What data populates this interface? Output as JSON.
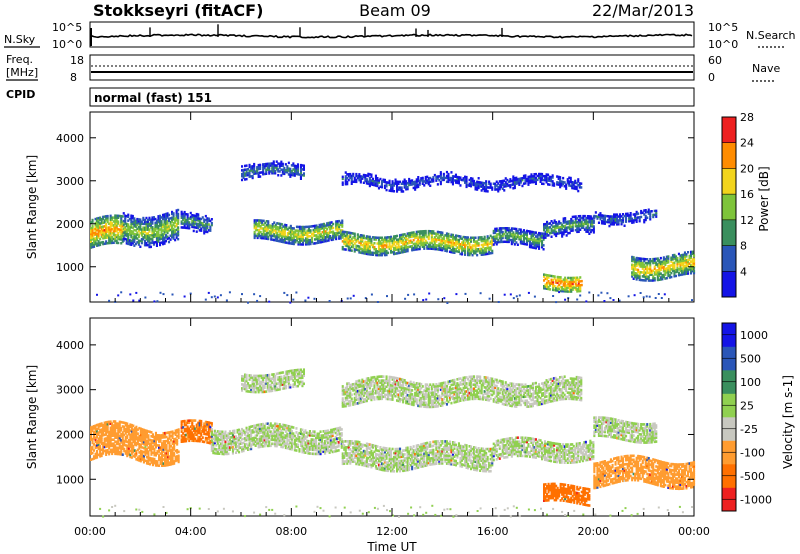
{
  "header": {
    "station": "Stokkseyri (fitACF)",
    "beam": "Beam 09",
    "date": "22/Mar/2013"
  },
  "noise_panel": {
    "left_label": "N.Sky",
    "right_label": "N.Search",
    "top_tick": "10^5",
    "bottom_tick": "10^0"
  },
  "freq_panel": {
    "left_label_1": "Freq.",
    "left_label_2": "[MHz]",
    "left_tick_top": "18",
    "left_tick_bottom": "8",
    "right_label": "Nave",
    "right_tick_top": "60",
    "right_tick_bottom": "0"
  },
  "cpid_panel": {
    "label": "CPID",
    "value": "normal (fast) 151"
  },
  "chart_data": [
    {
      "type": "heatmap",
      "name": "Power",
      "xlabel": "Time UT",
      "ylabel": "Slant Range [km]",
      "colorbar_label": "Power [dB]",
      "x_ticks": [
        "00:00",
        "04:00",
        "08:00",
        "12:00",
        "16:00",
        "20:00",
        "00:00"
      ],
      "y_ticks": [
        1000,
        2000,
        3000,
        4000
      ],
      "ylim": [
        180,
        4600
      ],
      "colorbar_ticks": [
        4,
        8,
        12,
        16,
        20,
        24,
        28
      ],
      "colors": [
        "#1414e6",
        "#2a56b8",
        "#3a8f5e",
        "#7ec43a",
        "#f2d41c",
        "#ff8c00",
        "#ee2020"
      ],
      "bands": [
        {
          "t0": 0.0,
          "t1": 1.3,
          "r": 1750,
          "w": 320,
          "v": 24
        },
        {
          "t0": 1.3,
          "t1": 3.5,
          "r": 1900,
          "w": 340,
          "v": 18
        },
        {
          "t0": 3.6,
          "t1": 4.8,
          "r": 2000,
          "w": 220,
          "v": 14
        },
        {
          "t0": 6.5,
          "t1": 10.0,
          "r": 1800,
          "w": 220,
          "v": 20
        },
        {
          "t0": 10.0,
          "t1": 16.0,
          "r": 1550,
          "w": 220,
          "v": 22
        },
        {
          "t0": 16.0,
          "t1": 18.0,
          "r": 1650,
          "w": 200,
          "v": 16
        },
        {
          "t0": 18.0,
          "t1": 20.0,
          "r": 1900,
          "w": 220,
          "v": 14
        },
        {
          "t0": 20.0,
          "t1": 22.5,
          "r": 2150,
          "w": 200,
          "v": 10
        },
        {
          "t0": 6.0,
          "t1": 8.5,
          "r": 3200,
          "w": 200,
          "v": 12
        },
        {
          "t0": 10.0,
          "t1": 19.5,
          "r": 2950,
          "w": 260,
          "v": 8
        },
        {
          "t0": 18.0,
          "t1": 19.5,
          "r": 650,
          "w": 180,
          "v": 26
        },
        {
          "t0": 21.5,
          "t1": 24.0,
          "r": 1000,
          "w": 250,
          "v": 22
        }
      ]
    },
    {
      "type": "heatmap",
      "name": "Velocity",
      "xlabel": "Time UT",
      "ylabel": "Slant Range [km]",
      "colorbar_label": "Velocity [m s-1]",
      "x_ticks": [
        "00:00",
        "04:00",
        "08:00",
        "12:00",
        "16:00",
        "20:00",
        "00:00"
      ],
      "y_ticks": [
        1000,
        2000,
        3000,
        4000
      ],
      "ylim": [
        180,
        4600
      ],
      "colorbar_ticks": [
        1000,
        500,
        100,
        25,
        -25,
        -100,
        -500,
        -1000
      ],
      "colors": [
        "#1414e6",
        "#2a56b8",
        "#3a8f5e",
        "#90d050",
        "#c8c8c0",
        "#ff9c30",
        "#ff7000",
        "#ee2020"
      ],
      "bands": [
        {
          "t0": 0.0,
          "t1": 3.5,
          "r": 1800,
          "w": 380,
          "v": -100
        },
        {
          "t0": 3.6,
          "t1": 4.8,
          "r": 2000,
          "w": 240,
          "v": -300
        },
        {
          "t0": 4.8,
          "t1": 10.0,
          "r": 1900,
          "w": 260,
          "v": 0
        },
        {
          "t0": 10.0,
          "t1": 16.0,
          "r": 1500,
          "w": 250,
          "v": 0
        },
        {
          "t0": 16.0,
          "t1": 20.0,
          "r": 1650,
          "w": 220,
          "v": 0
        },
        {
          "t0": 20.0,
          "t1": 22.5,
          "r": 2100,
          "w": 220,
          "v": 0
        },
        {
          "t0": 6.0,
          "t1": 8.5,
          "r": 3200,
          "w": 200,
          "v": 0
        },
        {
          "t0": 10.0,
          "t1": 19.5,
          "r": 2950,
          "w": 260,
          "v": 0
        },
        {
          "t0": 18.0,
          "t1": 19.8,
          "r": 650,
          "w": 200,
          "v": -500
        },
        {
          "t0": 20.0,
          "t1": 24.0,
          "r": 1150,
          "w": 280,
          "v": -150
        }
      ]
    }
  ]
}
